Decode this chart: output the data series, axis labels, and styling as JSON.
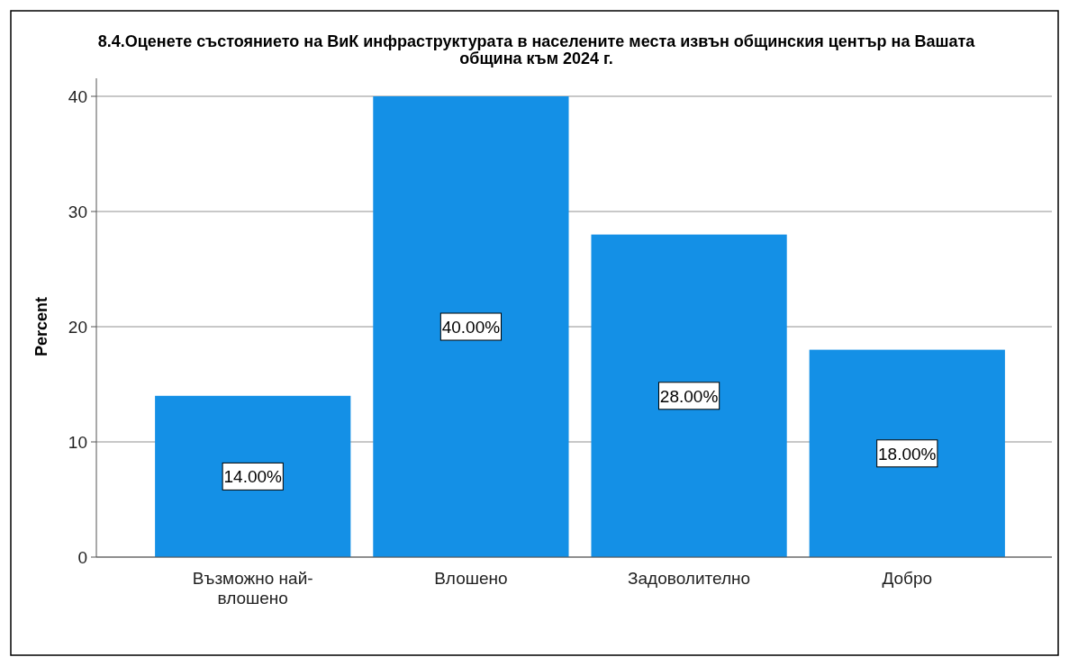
{
  "chart_data": {
    "type": "bar",
    "title": "8.4.Оценете състоянието на ВиК инфраструктурата в населените места извън общинския център на Вашата община към 2024 г.",
    "ylabel": "Percent",
    "categories": [
      "Възможно най-влошено",
      "Влошено",
      "Задоволително",
      "Добро"
    ],
    "values": [
      14,
      40,
      28,
      18
    ],
    "value_labels": [
      "14.00%",
      "40.00%",
      "28.00%",
      "18.00%"
    ],
    "color": "#1490e6",
    "ylim": [
      0,
      40
    ],
    "yticks": [
      0,
      10,
      20,
      30,
      40
    ],
    "grid": "y"
  }
}
